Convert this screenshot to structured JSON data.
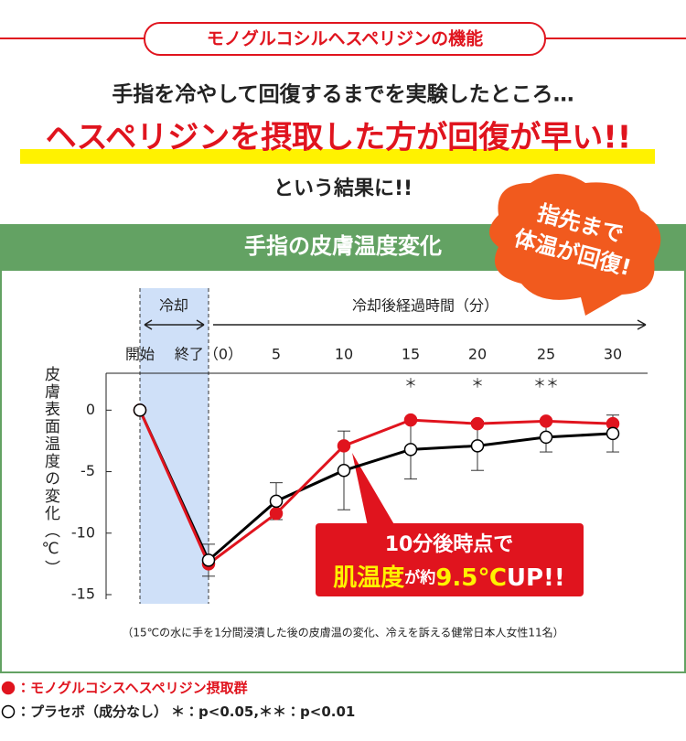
{
  "header": {
    "banner": "モノグルコシルヘスペリジンの機能",
    "line1": "手指を冷やして回復するまでを実験したところ…",
    "line2": "ヘスペリジンを摂取した方が回復が早い!!",
    "line3": "という結果に!!"
  },
  "bubble": {
    "line1": "指先まで",
    "line2": "体温が回復!"
  },
  "chart_data": {
    "type": "line",
    "title": "手指の皮膚温度変化",
    "cooling_label": "冷却",
    "x_label": "冷却後経過時間（分）",
    "y_label": "皮膚表面温度の変化（℃）",
    "categories": [
      "開始",
      "終了（0）",
      "5",
      "10",
      "15",
      "20",
      "25",
      "30"
    ],
    "series": [
      {
        "name": "モノグルコシスヘスペリジン摂取群",
        "color": "#e0141e",
        "marker": "filled",
        "values": [
          0,
          -12.5,
          -8.4,
          -2.9,
          -0.8,
          -1.1,
          -0.9,
          -1.1
        ]
      },
      {
        "name": "プラセボ（成分なし）",
        "color": "#000000",
        "marker": "open",
        "values": [
          0,
          -12.2,
          -7.4,
          -4.9,
          -3.2,
          -2.9,
          -2.2,
          -1.9
        ],
        "errors": [
          null,
          1.3,
          1.5,
          3.2,
          2.4,
          2.0,
          1.2,
          1.5
        ]
      }
    ],
    "significance": [
      null,
      null,
      null,
      null,
      "＊",
      "＊",
      "＊＊",
      null
    ],
    "ylim": [
      -15,
      3
    ],
    "yticks": [
      0,
      -5,
      -10,
      -15
    ],
    "callout": {
      "line1": "10分後時点で",
      "part1": "肌温度",
      "part2": "が約",
      "part3": "9.5℃",
      "part4": "UP!!"
    },
    "note": "（15℃の水に手を1分間浸漬した後の皮膚温の変化、冷えを訴える健常日本人女性11名）",
    "legend_sep": "：",
    "legend_extra": "＊：p<0.05,＊＊：p<0.01"
  }
}
